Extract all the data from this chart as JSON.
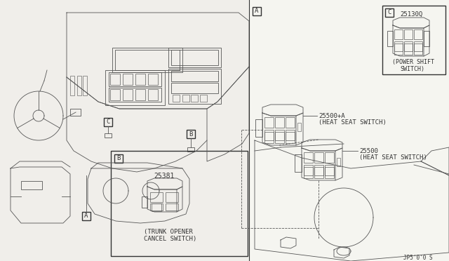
{
  "bg_color": "#f5f5f0",
  "line_color": "#555555",
  "dark_color": "#333333",
  "part_numbers": {
    "A_box": "25381",
    "B_upper": "25500+A",
    "B_lower": "25500",
    "C_box": "25130Q"
  },
  "labels": {
    "A_box_line1": "(TRUNK OPENER",
    "A_box_line2": "CANCEL SWITCH)",
    "B_upper": "(HEAT SEAT SWITCH)",
    "B_lower": "(HEAT SEAT SWITCH)",
    "C_box_line1": "(POWER SHIFT",
    "C_box_line2": "SWITCH)"
  },
  "footer": "JP5'0'0 S"
}
